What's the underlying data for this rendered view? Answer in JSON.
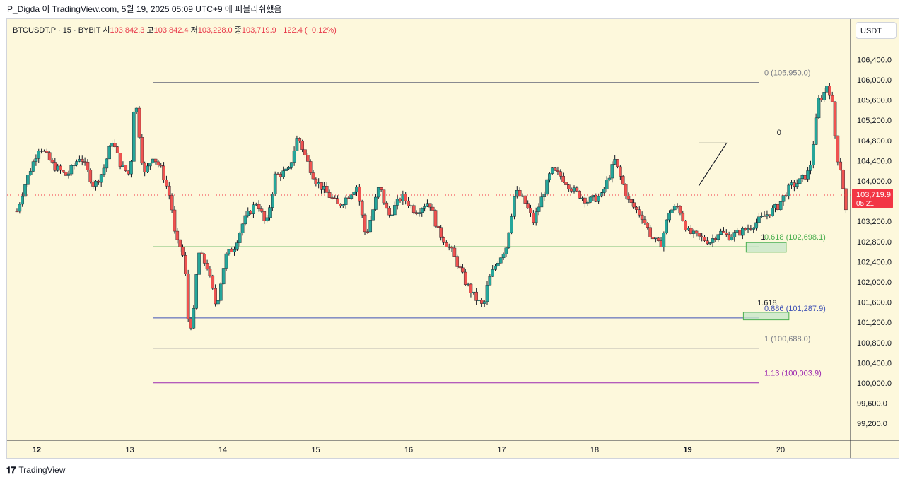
{
  "header": {
    "title": "P_Digda 이 TradingView.com, 5월 19, 2025 05:09 UTC+9 에 퍼블리쉬했음"
  },
  "symbol": {
    "name": "BTCUSDT.P · 15 · BYBIT",
    "o_label": "시",
    "o_value": "103,842.3",
    "h_label": "고",
    "h_value": "103,842.4",
    "l_label": "저",
    "l_value": "103,228.0",
    "c_label": "종",
    "c_value": "103,719.9",
    "change": "−122.4 (−0.12%)"
  },
  "currency_button": "USDT",
  "footer": {
    "logo_icon": "tradingview-logo-icon",
    "brand": "TradingView"
  },
  "colors": {
    "background": "#fdf8dc",
    "up": "#26a69a",
    "down": "#ef5350",
    "price_tag": "#f23645",
    "fib_0": "#787b86",
    "fib_618": "#4caf50",
    "fib_886": "#3f51b5",
    "fib_1": "#787b86",
    "fib_113": "#9c27b0"
  },
  "chart_data": {
    "type": "candlestick",
    "y_axis_ticks": [
      "106,400.0",
      "106,000.0",
      "105,600.0",
      "105,200.0",
      "104,800.0",
      "104,400.0",
      "104,000.0",
      "103,200.0",
      "102,800.0",
      "102,400.0",
      "102,000.0",
      "101,600.0",
      "101,200.0",
      "100,800.0",
      "100,400.0",
      "100,000.0",
      "99,600.0",
      "99,200.0"
    ],
    "y_tick_values": [
      106400,
      106000,
      105600,
      105200,
      104800,
      104400,
      104000,
      103200,
      102800,
      102400,
      102000,
      101600,
      101200,
      100800,
      100400,
      100000,
      99600,
      99200
    ],
    "ylim": [
      98900,
      106800
    ],
    "x_axis_ticks": [
      "12",
      "13",
      "14",
      "15",
      "16",
      "17",
      "18",
      "19",
      "20"
    ],
    "x_tick_bold": [
      "12",
      "19"
    ],
    "last_price": {
      "value": 103719.9,
      "label": "103,719.9",
      "countdown": "05:21"
    },
    "close_path": [
      [
        0,
        103400
      ],
      [
        2,
        104000
      ],
      [
        5,
        104700
      ],
      [
        8,
        104300
      ],
      [
        11,
        104100
      ],
      [
        14,
        104500
      ],
      [
        17,
        103900
      ],
      [
        19,
        104200
      ],
      [
        21,
        104800
      ],
      [
        23,
        104300
      ],
      [
        25,
        104100
      ],
      [
        26,
        105750
      ],
      [
        28,
        104100
      ],
      [
        30,
        104500
      ],
      [
        32,
        104200
      ],
      [
        34,
        103600
      ],
      [
        35,
        102800
      ],
      [
        36,
        102700
      ],
      [
        37,
        102400
      ],
      [
        38,
        101000
      ],
      [
        39,
        101400
      ],
      [
        40,
        102600
      ],
      [
        42,
        102300
      ],
      [
        44,
        101500
      ],
      [
        46,
        102500
      ],
      [
        48,
        102700
      ],
      [
        50,
        103200
      ],
      [
        53,
        103600
      ],
      [
        55,
        103100
      ],
      [
        57,
        104100
      ],
      [
        60,
        104200
      ],
      [
        62,
        104900
      ],
      [
        64,
        104400
      ],
      [
        66,
        104000
      ],
      [
        68,
        103800
      ],
      [
        71,
        103500
      ],
      [
        73,
        103700
      ],
      [
        75,
        103900
      ],
      [
        77,
        102900
      ],
      [
        80,
        103900
      ],
      [
        82,
        103300
      ],
      [
        85,
        103700
      ],
      [
        88,
        103400
      ],
      [
        91,
        103600
      ],
      [
        93,
        103000
      ],
      [
        96,
        102600
      ],
      [
        99,
        102000
      ],
      [
        101,
        101700
      ],
      [
        103,
        101500
      ],
      [
        104,
        102000
      ],
      [
        106,
        102400
      ],
      [
        108,
        102700
      ],
      [
        110,
        103800
      ],
      [
        112,
        103600
      ],
      [
        114,
        103200
      ],
      [
        116,
        103700
      ],
      [
        118,
        104200
      ],
      [
        120,
        104100
      ],
      [
        123,
        103800
      ],
      [
        126,
        103600
      ],
      [
        129,
        103700
      ],
      [
        132,
        104400
      ],
      [
        135,
        103600
      ],
      [
        138,
        103300
      ],
      [
        140,
        102900
      ],
      [
        142,
        102700
      ],
      [
        144,
        103400
      ],
      [
        146,
        103500
      ],
      [
        148,
        103000
      ],
      [
        150,
        102900
      ],
      [
        153,
        102800
      ],
      [
        155,
        103000
      ],
      [
        157,
        102900
      ],
      [
        160,
        103000
      ],
      [
        162,
        103100
      ],
      [
        165,
        103300
      ],
      [
        168,
        103500
      ],
      [
        170,
        103800
      ],
      [
        171,
        103900
      ],
      [
        173,
        104000
      ],
      [
        175,
        104200
      ],
      [
        176,
        104900
      ],
      [
        177,
        105600
      ],
      [
        178,
        105700
      ],
      [
        179,
        105950
      ],
      [
        180,
        105500
      ],
      [
        181,
        104500
      ],
      [
        182,
        104200
      ],
      [
        183,
        103400
      ],
      [
        184,
        103720
      ]
    ],
    "fib_levels": [
      {
        "label": "0 (105,950.0)",
        "value": 105950,
        "color": "#787b86"
      },
      {
        "label": "0.618 (102,698.1)",
        "value": 102698.1,
        "color": "#4caf50"
      },
      {
        "label": "0.886 (101,287.9)",
        "value": 101287.9,
        "color": "#3f51b5"
      },
      {
        "label": "1 (100,688.0)",
        "value": 100688,
        "color": "#787b86"
      },
      {
        "label": "1.13 (100,003.9)",
        "value": 100003.9,
        "color": "#9c27b0"
      }
    ],
    "fib_x_range": [
      0.246,
      1.82
    ],
    "annotations": [
      {
        "label": "0",
        "value": 104850,
        "day": 7.96
      },
      {
        "label": "1",
        "value": 102780,
        "day": 7.79
      },
      {
        "label": "1.618",
        "value": 101480,
        "day": 7.75
      }
    ],
    "zones": [
      {
        "day_start": 7.63,
        "day_end": 8.06,
        "top": 102780,
        "bottom": 102590
      },
      {
        "day_start": 7.6,
        "day_end": 8.09,
        "top": 101400,
        "bottom": 101250
      }
    ],
    "pattern": {
      "points": [
        [
          7.12,
          104750
        ],
        [
          7.42,
          104750
        ],
        [
          7.12,
          103900
        ]
      ],
      "dotted_to": [
        7.42,
        104750
      ]
    }
  }
}
